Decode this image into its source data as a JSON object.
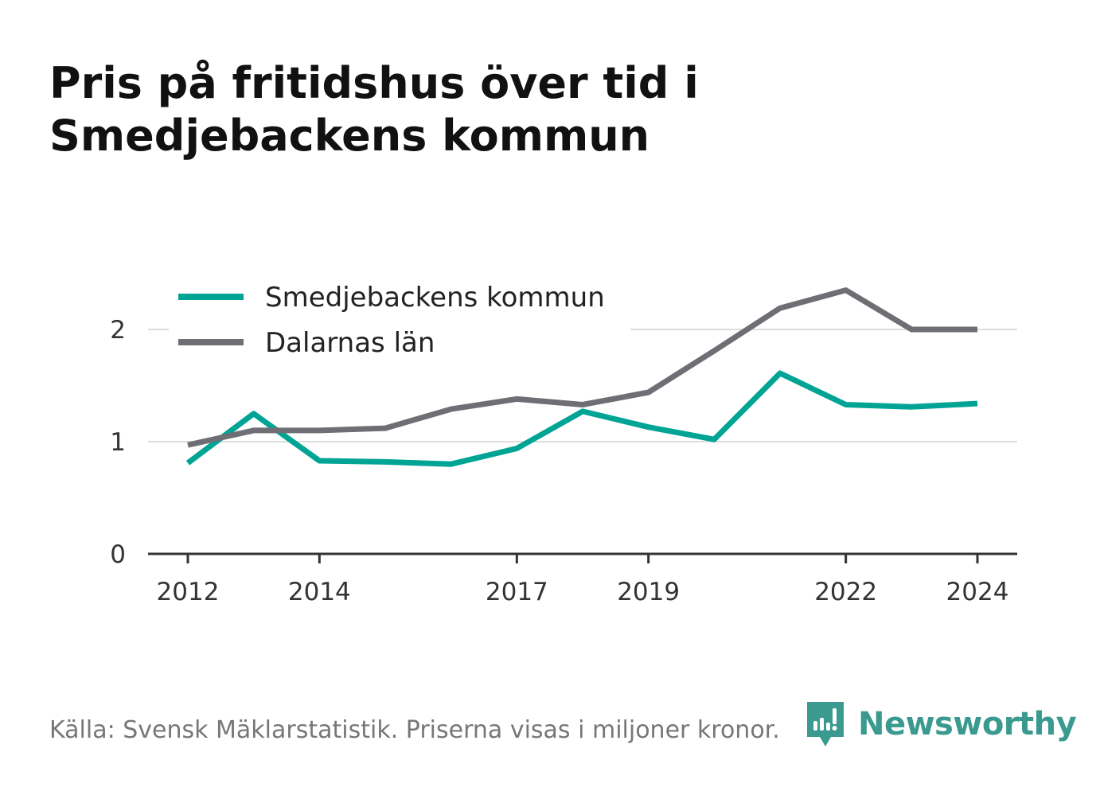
{
  "title_lines": [
    "Pris på fritidshus över tid i",
    "Smedjebackens kommun"
  ],
  "source": "Källa: Svensk Mäklarstatistik. Priserna visas i miljoner kronor.",
  "brand": {
    "name": "Newsworthy",
    "icon": "newsworthy-logo-icon",
    "color": "#3a9a8f"
  },
  "chart_data": {
    "type": "line",
    "title": "Pris på fritidshus över tid i Smedjebackens kommun",
    "x": [
      2012,
      2013,
      2014,
      2015,
      2016,
      2017,
      2018,
      2019,
      2020,
      2021,
      2022,
      2023,
      2024
    ],
    "x_ticks": [
      "2012",
      "2014",
      "2017",
      "2019",
      "2022",
      "2024"
    ],
    "y_ticks": [
      "0",
      "1",
      "2"
    ],
    "ylim": [
      0,
      2.5
    ],
    "grid": "horizontal",
    "legend_position": "top-left",
    "series": [
      {
        "name": "Smedjebackens kommun",
        "color": "#00a495",
        "values": [
          0.81,
          1.25,
          0.83,
          0.82,
          0.8,
          0.94,
          1.27,
          1.13,
          1.02,
          1.61,
          1.33,
          1.31,
          1.34
        ]
      },
      {
        "name": "Dalarnas län",
        "color": "#6f6e74",
        "values": [
          0.97,
          1.1,
          1.1,
          1.12,
          1.29,
          1.38,
          1.33,
          1.44,
          1.81,
          2.19,
          2.35,
          2.0,
          2.0
        ]
      }
    ]
  }
}
